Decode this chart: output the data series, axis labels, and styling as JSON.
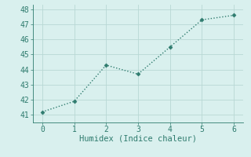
{
  "x": [
    0,
    1,
    2,
    3,
    4,
    5,
    6
  ],
  "y": [
    41.2,
    41.9,
    44.3,
    43.7,
    45.5,
    47.3,
    47.6
  ],
  "xlabel": "Humidex (Indice chaleur)",
  "ylim": [
    40.5,
    48.3
  ],
  "xlim": [
    -0.3,
    6.3
  ],
  "yticks": [
    41,
    42,
    43,
    44,
    45,
    46,
    47,
    48
  ],
  "xticks": [
    0,
    1,
    2,
    3,
    4,
    5,
    6
  ],
  "line_color": "#2e7b6e",
  "bg_color": "#d9f0ee",
  "grid_color": "#b8d8d4",
  "font_family": "monospace",
  "xlabel_fontsize": 7.5,
  "tick_fontsize": 7
}
